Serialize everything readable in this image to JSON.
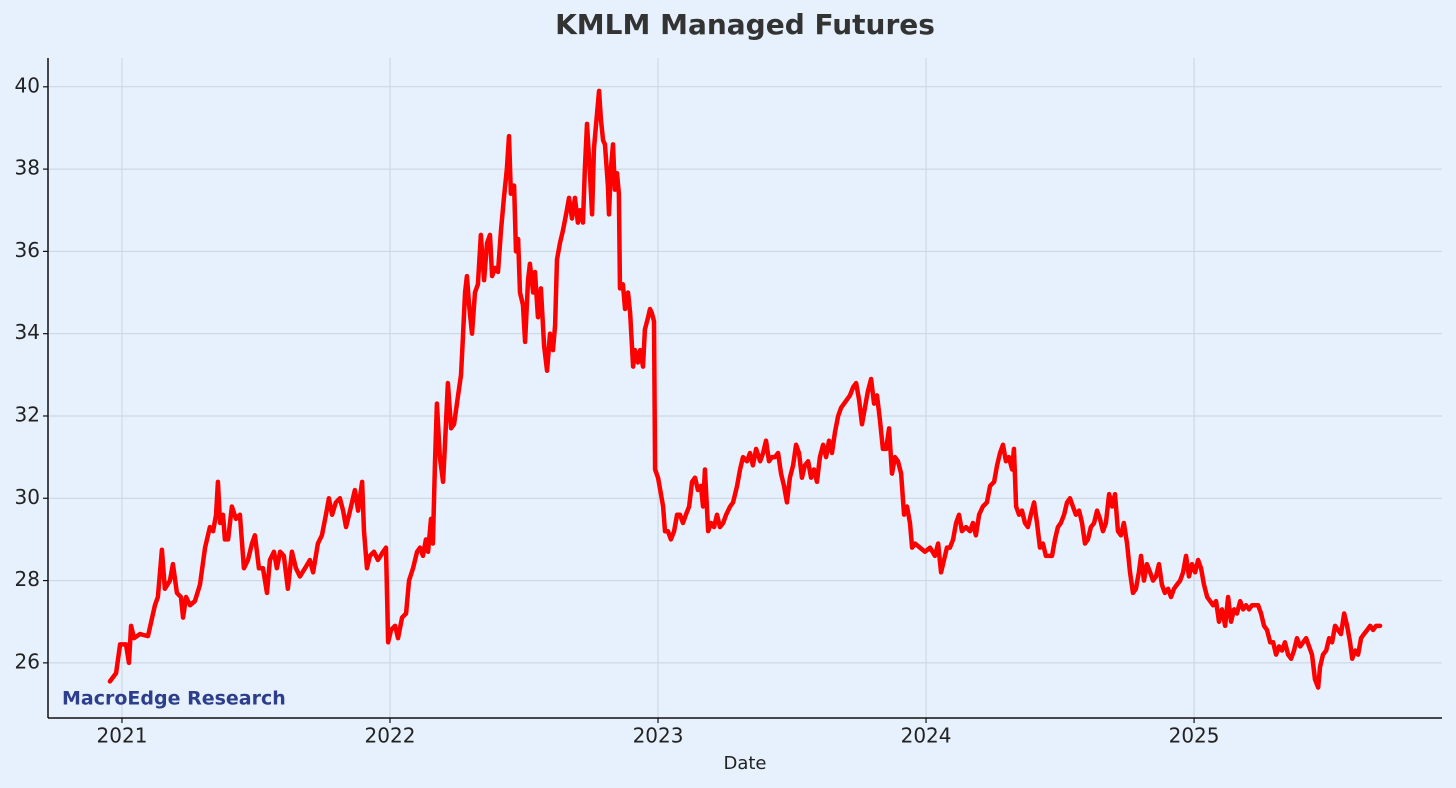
{
  "chart_data": {
    "type": "line",
    "title": "KMLM Managed Futures",
    "x_label": "Date",
    "annotation": "MacroEdge Research",
    "color": "#ff0000",
    "grid": true,
    "xlim": [
      2020.724,
      2025.925
    ],
    "xticks": [
      2021,
      2022,
      2023,
      2024,
      2025
    ],
    "ylim": [
      24.66,
      40.7
    ],
    "yticks": [
      26,
      28,
      30,
      32,
      34,
      36,
      38,
      40
    ],
    "x": [
      2020.955,
      2020.978,
      2020.993,
      2021.015,
      2021.026,
      2021.034,
      2021.045,
      2021.067,
      2021.097,
      2021.123,
      2021.134,
      2021.149,
      2021.16,
      2021.179,
      2021.19,
      2021.205,
      2021.22,
      2021.228,
      2021.239,
      2021.254,
      2021.272,
      2021.291,
      2021.31,
      2021.328,
      2021.34,
      2021.351,
      2021.358,
      2021.366,
      2021.377,
      2021.384,
      2021.396,
      2021.41,
      2021.425,
      2021.44,
      2021.455,
      2021.47,
      2021.485,
      2021.496,
      2021.511,
      2021.526,
      2021.541,
      2021.552,
      2021.567,
      2021.578,
      2021.59,
      2021.604,
      2021.619,
      2021.634,
      2021.649,
      2021.664,
      2021.683,
      2021.701,
      2021.713,
      2021.731,
      2021.746,
      2021.761,
      2021.772,
      2021.784,
      2021.798,
      2021.813,
      2021.825,
      2021.836,
      2021.851,
      2021.869,
      2021.881,
      2021.896,
      2021.903,
      2021.914,
      2021.925,
      2021.94,
      2021.955,
      2021.974,
      2021.985,
      2021.993,
      2022.004,
      2022.019,
      2022.03,
      2022.045,
      2022.06,
      2022.071,
      2022.086,
      2022.101,
      2022.112,
      2022.123,
      2022.134,
      2022.142,
      2022.153,
      2022.16,
      2022.168,
      2022.175,
      2022.186,
      2022.198,
      2022.205,
      2022.216,
      2022.228,
      2022.239,
      2022.254,
      2022.265,
      2022.272,
      2022.28,
      2022.287,
      2022.295,
      2022.306,
      2022.317,
      2022.328,
      2022.339,
      2022.351,
      2022.362,
      2022.373,
      2022.381,
      2022.392,
      2022.403,
      2022.414,
      2022.425,
      2022.436,
      2022.444,
      2022.451,
      2022.463,
      2022.47,
      2022.478,
      2022.485,
      2022.496,
      2022.504,
      2022.515,
      2022.522,
      2022.534,
      2022.541,
      2022.552,
      2022.563,
      2022.575,
      2022.586,
      2022.597,
      2022.608,
      2022.616,
      2022.623,
      2022.634,
      2022.645,
      2022.657,
      2022.668,
      2022.679,
      2022.69,
      2022.701,
      2022.709,
      2022.72,
      2022.727,
      2022.735,
      2022.746,
      2022.754,
      2022.761,
      2022.769,
      2022.78,
      2022.787,
      2022.795,
      2022.802,
      2022.813,
      2022.817,
      2022.824,
      2022.832,
      2022.839,
      2022.847,
      2022.854,
      2022.858,
      2022.869,
      2022.877,
      2022.888,
      2022.896,
      2022.907,
      2022.914,
      2022.925,
      2022.933,
      2022.944,
      2022.951,
      2022.963,
      2022.97,
      2022.977,
      2022.985,
      2022.989,
      2023.0,
      2023.011,
      2023.019,
      2023.026,
      2023.037,
      2023.048,
      2023.06,
      2023.071,
      2023.082,
      2023.093,
      2023.104,
      2023.116,
      2023.127,
      2023.138,
      2023.149,
      2023.16,
      2023.168,
      2023.175,
      2023.187,
      2023.198,
      2023.209,
      2023.22,
      2023.231,
      2023.243,
      2023.254,
      2023.269,
      2023.28,
      2023.295,
      2023.306,
      2023.317,
      2023.332,
      2023.343,
      2023.354,
      2023.366,
      2023.381,
      2023.392,
      2023.403,
      2023.414,
      2023.425,
      2023.436,
      2023.448,
      2023.459,
      2023.47,
      2023.481,
      2023.492,
      2023.504,
      2023.515,
      2023.526,
      2023.537,
      2023.548,
      2023.56,
      2023.571,
      2023.582,
      2023.593,
      2023.604,
      2023.616,
      2023.627,
      2023.638,
      2023.649,
      2023.66,
      2023.672,
      2023.683,
      2023.694,
      2023.705,
      2023.716,
      2023.728,
      2023.739,
      2023.75,
      2023.761,
      2023.772,
      2023.783,
      2023.795,
      2023.806,
      2023.817,
      2023.828,
      2023.839,
      2023.851,
      2023.862,
      2023.873,
      2023.884,
      2023.895,
      2023.907,
      2023.918,
      2023.929,
      2023.94,
      2023.948,
      2023.959,
      2023.977,
      2023.996,
      2024.015,
      2024.033,
      2024.045,
      2024.056,
      2024.067,
      2024.078,
      2024.089,
      2024.101,
      2024.112,
      2024.123,
      2024.134,
      2024.149,
      2024.164,
      2024.175,
      2024.186,
      2024.198,
      2024.212,
      2024.227,
      2024.239,
      2024.254,
      2024.265,
      2024.276,
      2024.287,
      2024.298,
      2024.309,
      2024.321,
      2024.328,
      2024.336,
      2024.347,
      2024.358,
      2024.369,
      2024.38,
      2024.391,
      2024.403,
      2024.414,
      2024.425,
      2024.436,
      2024.447,
      2024.459,
      2024.47,
      2024.481,
      2024.492,
      2024.503,
      2024.515,
      2024.526,
      2024.537,
      2024.548,
      2024.559,
      2024.571,
      2024.582,
      2024.593,
      2024.604,
      2024.615,
      2024.627,
      2024.638,
      2024.649,
      2024.66,
      2024.671,
      2024.683,
      2024.694,
      2024.705,
      2024.716,
      2024.727,
      2024.738,
      2024.75,
      2024.761,
      2024.772,
      2024.783,
      2024.794,
      2024.802,
      2024.813,
      2024.824,
      2024.836,
      2024.847,
      2024.858,
      2024.869,
      2024.88,
      2024.891,
      2024.903,
      2024.914,
      2024.925,
      2024.936,
      2024.948,
      2024.959,
      2024.97,
      2024.981,
      2024.992,
      2025.004,
      2025.015,
      2025.026,
      2025.037,
      2025.049,
      2025.06,
      2025.071,
      2025.082,
      2025.093,
      2025.104,
      2025.116,
      2025.127,
      2025.138,
      2025.149,
      2025.16,
      2025.172,
      2025.183,
      2025.194,
      2025.205,
      2025.216,
      2025.228,
      2025.239,
      2025.25,
      2025.261,
      2025.272,
      2025.284,
      2025.295,
      2025.306,
      2025.317,
      2025.328,
      2025.339,
      2025.351,
      2025.362,
      2025.373,
      2025.384,
      2025.396,
      2025.407,
      2025.418,
      2025.429,
      2025.44,
      2025.451,
      2025.463,
      2025.47,
      2025.481,
      2025.493,
      2025.504,
      2025.515,
      2025.526,
      2025.537,
      2025.548,
      2025.56,
      2025.571,
      2025.582,
      2025.59,
      2025.601,
      2025.612,
      2025.623,
      2025.634,
      2025.646,
      2025.657,
      2025.668,
      2025.679,
      2025.694
    ],
    "values": [
      25.55,
      25.75,
      26.45,
      26.45,
      26.0,
      26.9,
      26.6,
      26.7,
      26.65,
      27.4,
      27.6,
      28.75,
      27.8,
      28.0,
      28.4,
      27.7,
      27.6,
      27.1,
      27.6,
      27.4,
      27.5,
      27.9,
      28.8,
      29.3,
      29.2,
      29.6,
      30.4,
      29.4,
      29.6,
      29.0,
      29.0,
      29.8,
      29.5,
      29.6,
      28.3,
      28.5,
      28.9,
      29.1,
      28.3,
      28.3,
      27.7,
      28.5,
      28.7,
      28.3,
      28.7,
      28.6,
      27.8,
      28.7,
      28.3,
      28.1,
      28.3,
      28.5,
      28.2,
      28.9,
      29.1,
      29.6,
      30.0,
      29.6,
      29.9,
      30.0,
      29.7,
      29.3,
      29.7,
      30.2,
      29.7,
      30.4,
      29.2,
      28.3,
      28.6,
      28.7,
      28.5,
      28.7,
      28.8,
      26.5,
      26.8,
      26.9,
      26.6,
      27.1,
      27.2,
      28.0,
      28.3,
      28.7,
      28.8,
      28.6,
      29.0,
      28.7,
      29.5,
      28.9,
      30.9,
      32.3,
      31.0,
      30.4,
      31.3,
      32.8,
      31.7,
      31.8,
      32.5,
      33.0,
      33.9,
      35.0,
      35.4,
      34.7,
      34.0,
      35.0,
      35.2,
      36.4,
      35.3,
      36.2,
      36.4,
      35.4,
      35.6,
      35.5,
      36.5,
      37.3,
      38.0,
      38.8,
      37.4,
      37.6,
      36.0,
      36.3,
      35.0,
      34.7,
      33.8,
      35.3,
      35.7,
      35.0,
      35.5,
      34.4,
      35.1,
      33.7,
      33.1,
      34.0,
      33.6,
      34.2,
      35.8,
      36.2,
      36.5,
      36.9,
      37.3,
      36.8,
      37.3,
      36.7,
      37.0,
      36.7,
      38.0,
      39.1,
      37.9,
      36.9,
      38.5,
      39.1,
      39.9,
      39.2,
      38.7,
      38.6,
      37.6,
      36.9,
      38.0,
      38.6,
      37.5,
      37.9,
      37.4,
      35.1,
      35.2,
      34.6,
      35.0,
      34.5,
      33.2,
      33.6,
      33.3,
      33.6,
      33.2,
      34.1,
      34.4,
      34.6,
      34.5,
      34.3,
      30.7,
      30.5,
      30.1,
      29.8,
      29.2,
      29.2,
      29.0,
      29.2,
      29.6,
      29.6,
      29.4,
      29.6,
      29.8,
      30.4,
      30.5,
      30.2,
      30.3,
      29.8,
      30.7,
      29.2,
      29.4,
      29.3,
      29.6,
      29.3,
      29.4,
      29.6,
      29.8,
      29.9,
      30.3,
      30.7,
      31.0,
      30.9,
      31.1,
      30.8,
      31.2,
      30.9,
      31.1,
      31.4,
      30.9,
      31.0,
      31.0,
      31.1,
      30.6,
      30.3,
      29.9,
      30.5,
      30.8,
      31.3,
      31.1,
      30.5,
      30.8,
      30.9,
      30.5,
      30.7,
      30.4,
      31.0,
      31.3,
      31.0,
      31.4,
      31.1,
      31.6,
      32.0,
      32.2,
      32.3,
      32.4,
      32.5,
      32.7,
      32.8,
      32.4,
      31.8,
      32.2,
      32.6,
      32.9,
      32.3,
      32.5,
      31.9,
      31.2,
      31.2,
      31.7,
      30.6,
      31.0,
      30.9,
      30.6,
      29.6,
      29.8,
      29.4,
      28.8,
      28.9,
      28.8,
      28.7,
      28.8,
      28.6,
      28.9,
      28.2,
      28.5,
      28.8,
      28.8,
      29.0,
      29.4,
      29.6,
      29.2,
      29.3,
      29.2,
      29.4,
      29.1,
      29.6,
      29.8,
      29.9,
      30.3,
      30.4,
      30.8,
      31.1,
      31.3,
      30.9,
      31.0,
      30.7,
      31.2,
      29.8,
      29.6,
      29.7,
      29.4,
      29.3,
      29.6,
      29.9,
      29.4,
      28.8,
      28.9,
      28.6,
      28.6,
      28.6,
      29.0,
      29.3,
      29.4,
      29.6,
      29.9,
      30.0,
      29.8,
      29.6,
      29.7,
      29.4,
      28.9,
      29.0,
      29.3,
      29.4,
      29.7,
      29.5,
      29.2,
      29.4,
      30.1,
      29.8,
      30.1,
      29.2,
      29.1,
      29.4,
      28.9,
      28.2,
      27.7,
      27.8,
      28.2,
      28.6,
      28.0,
      28.4,
      28.2,
      28.0,
      28.1,
      28.4,
      27.9,
      27.7,
      27.8,
      27.6,
      27.8,
      27.9,
      28.0,
      28.2,
      28.6,
      28.1,
      28.4,
      28.2,
      28.5,
      28.3,
      27.9,
      27.6,
      27.5,
      27.4,
      27.5,
      27.0,
      27.3,
      26.9,
      27.6,
      27.0,
      27.3,
      27.2,
      27.5,
      27.3,
      27.4,
      27.3,
      27.4,
      27.4,
      27.4,
      27.2,
      26.9,
      26.8,
      26.5,
      26.5,
      26.2,
      26.4,
      26.3,
      26.5,
      26.2,
      26.1,
      26.3,
      26.6,
      26.4,
      26.5,
      26.6,
      26.4,
      26.2,
      25.6,
      25.4,
      25.9,
      26.2,
      26.3,
      26.6,
      26.5,
      26.9,
      26.8,
      26.7,
      27.2,
      26.9,
      26.5,
      26.1,
      26.3,
      26.2,
      26.6,
      26.7,
      26.8,
      26.9,
      26.8,
      26.9,
      26.9
    ]
  }
}
